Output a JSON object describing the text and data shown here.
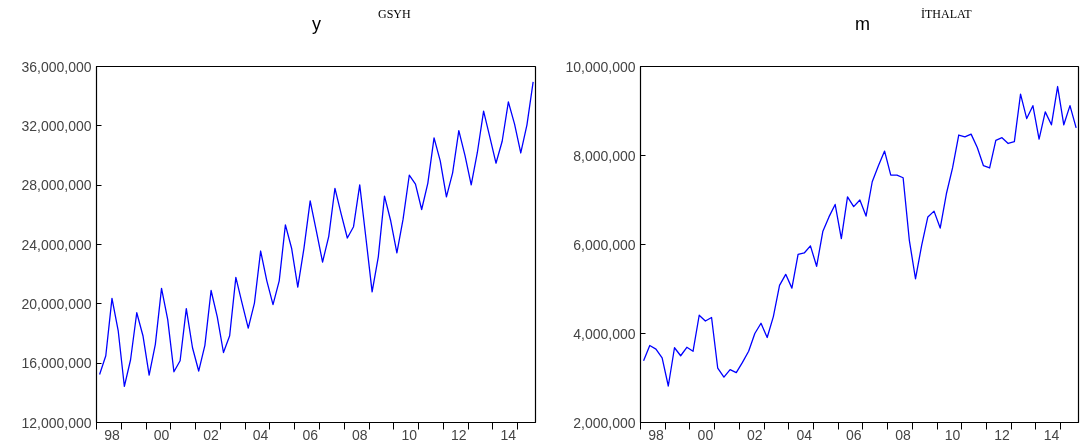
{
  "chart_data": [
    {
      "type": "line",
      "title": "y",
      "subtitle": "GSYH",
      "categories": [
        null,
        null,
        "98",
        null,
        null,
        null,
        null,
        null,
        null,
        null,
        "00",
        null,
        null,
        null,
        null,
        null,
        null,
        null,
        "02",
        null,
        null,
        null,
        null,
        null,
        null,
        null,
        "04",
        null,
        null,
        null,
        null,
        null,
        null,
        null,
        "06",
        null,
        null,
        null,
        null,
        null,
        null,
        null,
        "08",
        null,
        null,
        null,
        null,
        null,
        null,
        null,
        "10",
        null,
        null,
        null,
        null,
        null,
        null,
        null,
        "12",
        null,
        null,
        null,
        null,
        null,
        null,
        null,
        "14",
        null,
        null,
        null,
        null
      ],
      "series": [
        {
          "color": "#0000ff",
          "values": [
            15240000,
            16500000,
            20370000,
            18200000,
            14430000,
            16230000,
            19400000,
            17850000,
            15200000,
            17270000,
            21040000,
            18940000,
            15420000,
            16160000,
            19680000,
            17040000,
            15470000,
            17200000,
            20900000,
            19120000,
            16720000,
            17850000,
            21780000,
            20050000,
            18360000,
            20050000,
            23560000,
            21550000,
            19950000,
            21550000,
            25320000,
            23750000,
            21130000,
            23750000,
            26940000,
            24900000,
            22820000,
            24550000,
            27790000,
            26060000,
            24440000,
            25200000,
            28020000,
            24440000,
            20810000,
            23170000,
            27260000,
            25600000,
            23440000,
            25710000,
            28670000,
            28070000,
            26360000,
            28140000,
            31190000,
            29640000,
            27210000,
            28830000,
            31680000,
            29990000,
            28020000,
            30220000,
            32990000,
            31260000,
            29480000,
            30960000,
            33620000,
            32120000,
            30170000,
            32070000,
            34960000
          ]
        }
      ],
      "ylim": [
        12000000,
        36000000
      ],
      "yticks": [
        {
          "value": 12000000,
          "label": "12,000,000"
        },
        {
          "value": 16000000,
          "label": "16,000,000"
        },
        {
          "value": 20000000,
          "label": "20,000,000"
        },
        {
          "value": 24000000,
          "label": "24,000,000"
        },
        {
          "value": 28000000,
          "label": "28,000,000"
        },
        {
          "value": 32000000,
          "label": "32,000,000"
        },
        {
          "value": 36000000,
          "label": "36,000,000"
        }
      ]
    },
    {
      "type": "line",
      "title": "m",
      "subtitle": "İTHALAT",
      "categories": [
        null,
        null,
        "98",
        null,
        null,
        null,
        null,
        null,
        null,
        null,
        "00",
        null,
        null,
        null,
        null,
        null,
        null,
        null,
        "02",
        null,
        null,
        null,
        null,
        null,
        null,
        null,
        "04",
        null,
        null,
        null,
        null,
        null,
        null,
        null,
        "06",
        null,
        null,
        null,
        null,
        null,
        null,
        null,
        "08",
        null,
        null,
        null,
        null,
        null,
        null,
        null,
        "10",
        null,
        null,
        null,
        null,
        null,
        null,
        null,
        "12",
        null,
        null,
        null,
        null,
        null,
        null,
        null,
        "14",
        null,
        null,
        null,
        null
      ],
      "series": [
        {
          "color": "#0000ff",
          "values": [
            3390000,
            3730000,
            3650000,
            3450000,
            2820000,
            3680000,
            3500000,
            3690000,
            3600000,
            4410000,
            4280000,
            4360000,
            3220000,
            3020000,
            3190000,
            3120000,
            3350000,
            3600000,
            4000000,
            4230000,
            3910000,
            4380000,
            5080000,
            5330000,
            5020000,
            5780000,
            5810000,
            5970000,
            5510000,
            6290000,
            6620000,
            6900000,
            6130000,
            7070000,
            6850000,
            7000000,
            6640000,
            7410000,
            7770000,
            8100000,
            7560000,
            7560000,
            7500000,
            6100000,
            5230000,
            5980000,
            6620000,
            6750000,
            6370000,
            7140000,
            7720000,
            8460000,
            8420000,
            8480000,
            8180000,
            7770000,
            7720000,
            8340000,
            8400000,
            8270000,
            8310000,
            9380000,
            8830000,
            9120000,
            8370000,
            8980000,
            8690000,
            9550000,
            8690000,
            9120000,
            8620000
          ]
        }
      ],
      "ylim": [
        2000000,
        10000000
      ],
      "yticks": [
        {
          "value": 2000000,
          "label": "2,000,000"
        },
        {
          "value": 4000000,
          "label": "4,000,000"
        },
        {
          "value": 6000000,
          "label": "6,000,000"
        },
        {
          "value": 8000000,
          "label": "8,000,000"
        },
        {
          "value": 10000000,
          "label": "10,000,000"
        }
      ]
    }
  ]
}
